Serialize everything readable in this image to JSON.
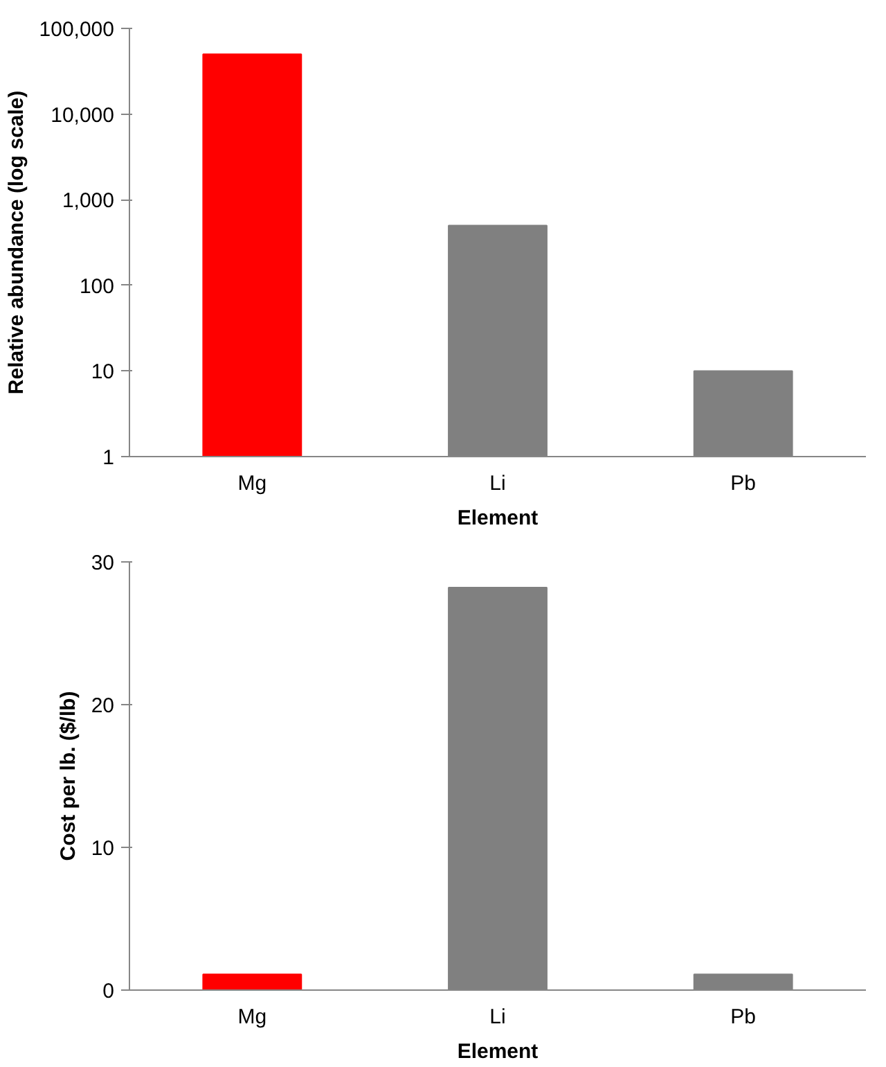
{
  "chart_data": [
    {
      "type": "bar",
      "categories": [
        "Mg",
        "Li",
        "Pb"
      ],
      "values": [
        50000,
        500,
        10
      ],
      "colors": [
        "#ff0000",
        "#808080",
        "#808080"
      ],
      "xlabel": "Element",
      "ylabel": "Relative abundance (log scale)",
      "log": true,
      "ylim": [
        1,
        100000
      ],
      "yticks": [
        1,
        10,
        100,
        {
          "value": 1000,
          "label": "1,000"
        },
        {
          "value": 10000,
          "label": "10,000"
        },
        {
          "value": 100000,
          "label": "100,000"
        }
      ]
    },
    {
      "type": "bar",
      "categories": [
        "Mg",
        "Li",
        "Pb"
      ],
      "values": [
        1.1,
        28.2,
        1.1
      ],
      "colors": [
        "#ff0000",
        "#808080",
        "#808080"
      ],
      "xlabel": "Element",
      "ylabel": "Cost per lb. ($/lb)",
      "ylim": [
        0,
        30
      ],
      "yticks": [
        0,
        10,
        20,
        30
      ]
    }
  ]
}
